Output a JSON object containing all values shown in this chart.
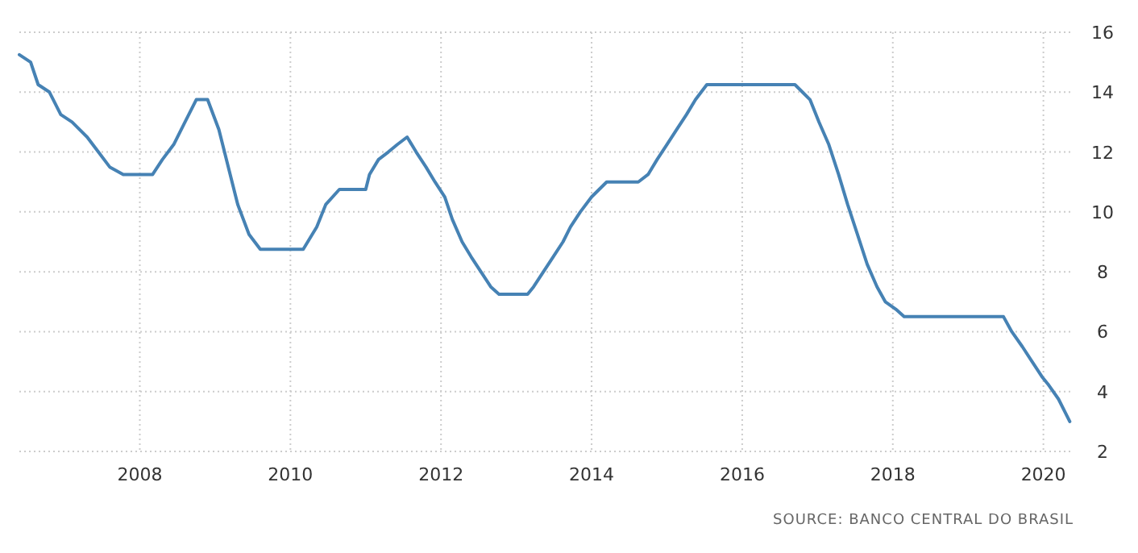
{
  "chart_data": {
    "type": "line",
    "x": [
      2006.4,
      2006.55,
      2006.65,
      2006.8,
      2006.95,
      2007.1,
      2007.3,
      2007.45,
      2007.6,
      2007.78,
      2008.17,
      2008.3,
      2008.45,
      2008.6,
      2008.75,
      2008.9,
      2009.05,
      2009.2,
      2009.3,
      2009.45,
      2009.6,
      2010.17,
      2010.35,
      2010.47,
      2010.65,
      2011.0,
      2011.05,
      2011.17,
      2011.3,
      2011.42,
      2011.55,
      2011.67,
      2011.8,
      2011.92,
      2012.05,
      2012.15,
      2012.28,
      2012.4,
      2012.53,
      2012.66,
      2012.77,
      2013.15,
      2013.23,
      2013.36,
      2013.49,
      2013.62,
      2013.72,
      2013.85,
      2014.0,
      2014.1,
      2014.2,
      2014.62,
      2014.75,
      2014.87,
      2015.0,
      2015.13,
      2015.26,
      2015.38,
      2015.53,
      2016.7,
      2016.8,
      2016.9,
      2017.02,
      2017.15,
      2017.28,
      2017.4,
      2017.53,
      2017.66,
      2017.79,
      2017.9,
      2018.04,
      2018.15,
      2019.47,
      2019.58,
      2019.72,
      2019.85,
      2019.98,
      2020.06,
      2020.2,
      2020.35
    ],
    "series": [
      {
        "color": "#4682b4",
        "values": [
          15.25,
          15.0,
          14.25,
          14.0,
          13.25,
          13.0,
          12.5,
          12.0,
          11.5,
          11.25,
          11.25,
          11.75,
          12.25,
          13.0,
          13.75,
          13.75,
          12.75,
          11.25,
          10.25,
          9.25,
          8.75,
          8.75,
          9.5,
          10.25,
          10.75,
          10.75,
          11.25,
          11.75,
          12.0,
          12.25,
          12.5,
          12.0,
          11.5,
          11.0,
          10.5,
          9.75,
          9.0,
          8.5,
          8.0,
          7.5,
          7.25,
          7.25,
          7.5,
          8.0,
          8.5,
          9.0,
          9.5,
          10.0,
          10.5,
          10.75,
          11.0,
          11.0,
          11.25,
          11.75,
          12.25,
          12.75,
          13.25,
          13.75,
          14.25,
          14.25,
          14.0,
          13.75,
          13.0,
          12.25,
          11.25,
          10.25,
          9.25,
          8.25,
          7.5,
          7.0,
          6.75,
          6.5,
          6.5,
          6.0,
          5.5,
          5.0,
          4.5,
          4.25,
          3.75,
          3.0
        ]
      }
    ],
    "xlim": [
      2006.4,
      2020.4
    ],
    "xticks": [
      2008,
      2010,
      2012,
      2014,
      2016,
      2018,
      2020
    ],
    "ylim": [
      2,
      16
    ],
    "yticks": [
      2,
      4,
      6,
      8,
      10,
      12,
      14,
      16
    ],
    "grid": true,
    "annotations": [
      "SOURCE: BANCO CENTRAL DO BRASIL"
    ]
  }
}
